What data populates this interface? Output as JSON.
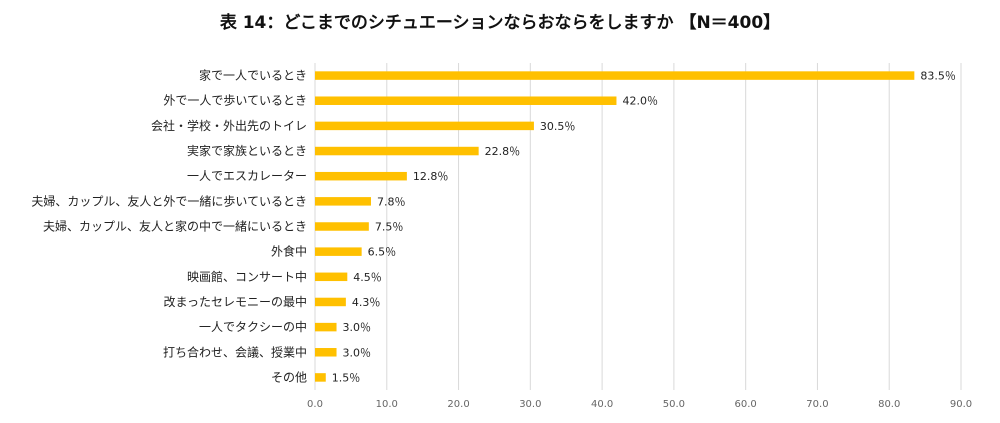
{
  "chart_data": {
    "type": "bar",
    "orientation": "horizontal",
    "title": "表 14：どこまでのシチュエーションならおならをしますか 【N＝400】",
    "categories": [
      "家で一人でいるとき",
      "外で一人で歩いているとき",
      "会社・学校・外出先のトイレ",
      "実家で家族といるとき",
      "一人でエスカレーター",
      "夫婦、カップル、友人と外で一緒に歩いているとき",
      "夫婦、カップル、友人と家の中で一緒にいるとき",
      "外食中",
      "映画館、コンサート中",
      "改まったセレモニーの最中",
      "一人でタクシーの中",
      "打ち合わせ、会議、授業中",
      "その他"
    ],
    "values": [
      83.5,
      42.0,
      30.5,
      22.8,
      12.8,
      7.8,
      7.5,
      6.5,
      4.5,
      4.3,
      3.0,
      3.0,
      1.5
    ],
    "value_labels": [
      "83.5％",
      "42.0％",
      "30.5％",
      "22.8％",
      "12.8％",
      "7.8％",
      "7.5％",
      "6.5％",
      "4.5％",
      "4.3％",
      "3.0％",
      "3.0％",
      "1.5％"
    ],
    "xlim": [
      0,
      90
    ],
    "xticks": [
      "0.0",
      "10.0",
      "20.0",
      "30.0",
      "40.0",
      "50.0",
      "60.0",
      "70.0",
      "80.0",
      "90.0"
    ],
    "grid": true,
    "bar_color": "#FFC000",
    "grid_color": "#D9D9D9"
  }
}
